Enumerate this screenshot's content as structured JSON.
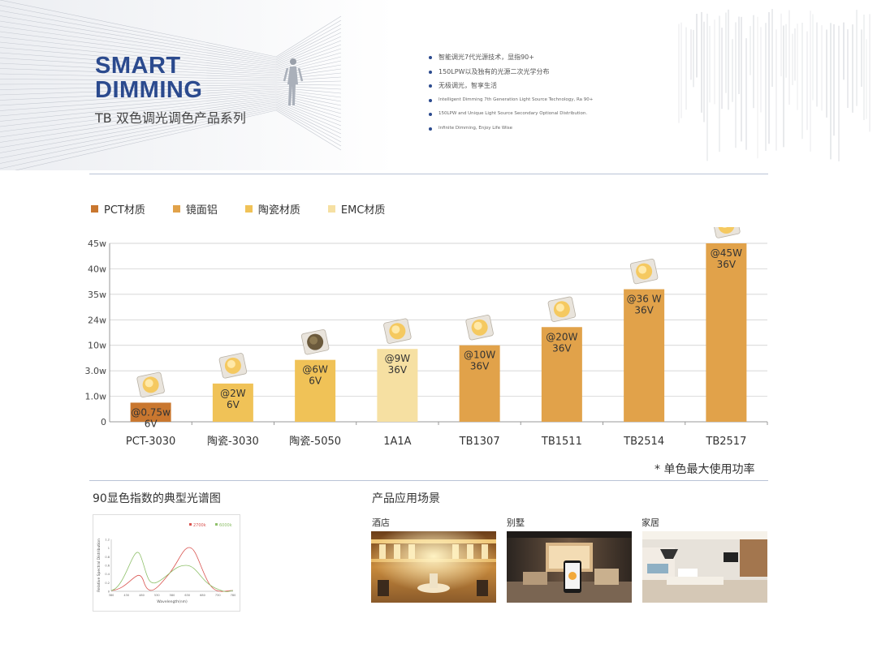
{
  "header": {
    "title_line1": "SMART",
    "title_line2": "DIMMING",
    "subtitle": "TB 双色调光调色产品系列",
    "bullets_cn": [
      "智能调光7代光源技术，显指90+",
      "150LPW以及独有的光源二次光学分布",
      "无极调光，智享生活"
    ],
    "bullets_en": [
      "Intelligent Dimming 7th Generation Light Source Technology, Ra 90+",
      "150LPW and Unique Light Source Secondary Optional Distribution.",
      "Infinite Dimming, Enjoy Life Wise"
    ]
  },
  "legend": [
    {
      "label": "PCT材质",
      "color": "#c9772f"
    },
    {
      "label": "镜面铝",
      "color": "#e1a24a"
    },
    {
      "label": "陶瓷材质",
      "color": "#f0c257"
    },
    {
      "label": "EMC材质",
      "color": "#f6e0a2"
    }
  ],
  "chart_data": {
    "type": "bar",
    "categories": [
      "PCT-3030",
      "陶瓷-3030",
      "陶瓷-5050",
      "1A1A",
      "TB1307",
      "TB1511",
      "TB2514",
      "TB2517"
    ],
    "values": [
      0.75,
      2,
      6,
      9,
      10,
      20,
      36,
      45
    ],
    "y_ticks": [
      "0",
      "1.0w",
      "3.0w",
      "10w",
      "24w",
      "35w",
      "40w",
      "45w"
    ],
    "bar_labels": [
      [
        "@0.75w",
        "6V"
      ],
      [
        "@2W",
        "6V"
      ],
      [
        "@6W",
        "6V"
      ],
      [
        "@9W",
        "36V"
      ],
      [
        "@10W",
        "36V"
      ],
      [
        "@20W",
        "36V"
      ],
      [
        "@36  W",
        "36V"
      ],
      [
        "@45W",
        "36V"
      ]
    ],
    "bar_colors": [
      "#c9772f",
      "#f0c257",
      "#f0c257",
      "#f6e0a2",
      "#e1a24a",
      "#e1a24a",
      "#e1a24a",
      "#e1a24a"
    ],
    "grid": true,
    "note": "* 单色最大使用功率"
  },
  "spectrum": {
    "title": "90显色指数的典型光谱图",
    "legend": [
      {
        "label": "2700k",
        "color": "#d9534f"
      },
      {
        "label": "6000k",
        "color": "#8fc06b"
      }
    ],
    "ylabel": "Relative Spectral Distribution",
    "xlabel": "Wavelength(nm)",
    "x_ticks": [
      "380",
      "430",
      "480",
      "530",
      "580",
      "630",
      "680",
      "730",
      "780"
    ],
    "y_ticks": [
      "1.2",
      "1",
      "0.8",
      "0.6",
      "0.4",
      "0.2",
      "0"
    ]
  },
  "applications": {
    "title": "产品应用场景",
    "items": [
      {
        "label": "酒店"
      },
      {
        "label": "别墅"
      },
      {
        "label": "家居"
      }
    ]
  }
}
